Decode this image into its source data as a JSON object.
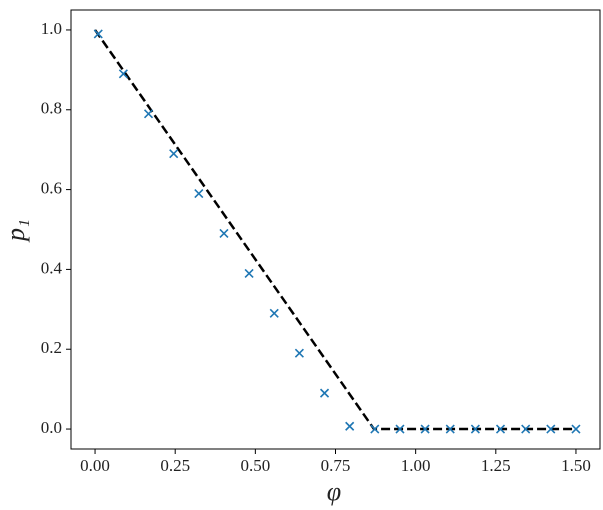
{
  "chart_data": {
    "type": "scatter",
    "xlabel": "φ",
    "ylabel": "p₁",
    "xlim": [
      -0.075,
      1.575
    ],
    "ylim": [
      -0.05,
      1.05
    ],
    "xticks": [
      {
        "value": 0,
        "label": "0.00"
      },
      {
        "value": 0.25,
        "label": "0.25"
      },
      {
        "value": 0.5,
        "label": "0.50"
      },
      {
        "value": 0.75,
        "label": "0.75"
      },
      {
        "value": 1,
        "label": "1.00"
      },
      {
        "value": 1.25,
        "label": "1.25"
      },
      {
        "value": 1.5,
        "label": "1.50"
      }
    ],
    "yticks": [
      {
        "value": 0,
        "label": "0.0"
      },
      {
        "value": 0.2,
        "label": "0.2"
      },
      {
        "value": 0.4,
        "label": "0.4"
      },
      {
        "value": 0.6,
        "label": "0.6"
      },
      {
        "value": 0.8,
        "label": "0.8"
      },
      {
        "value": 1,
        "label": "1.0"
      }
    ],
    "series": [
      {
        "kind": "line",
        "style": "dashed",
        "color": "#000000",
        "x": [
          0,
          0.87,
          1.5
        ],
        "values": [
          1,
          0,
          0
        ]
      },
      {
        "kind": "scatter",
        "marker": "x",
        "color": "#1f77b4",
        "x": [
          0.01,
          0.0884,
          0.1668,
          0.2453,
          0.3237,
          0.4021,
          0.4805,
          0.5589,
          0.6374,
          0.7158,
          0.7942,
          0.8726,
          0.9511,
          1.0295,
          1.1079,
          1.1863,
          1.2647,
          1.3432,
          1.4216,
          1.5
        ],
        "values": [
          0.99,
          0.89,
          0.79,
          0.69,
          0.59,
          0.49,
          0.39,
          0.29,
          0.19,
          0.09,
          0.007,
          0,
          0,
          0,
          0,
          0,
          0,
          0,
          0,
          0
        ]
      }
    ]
  }
}
